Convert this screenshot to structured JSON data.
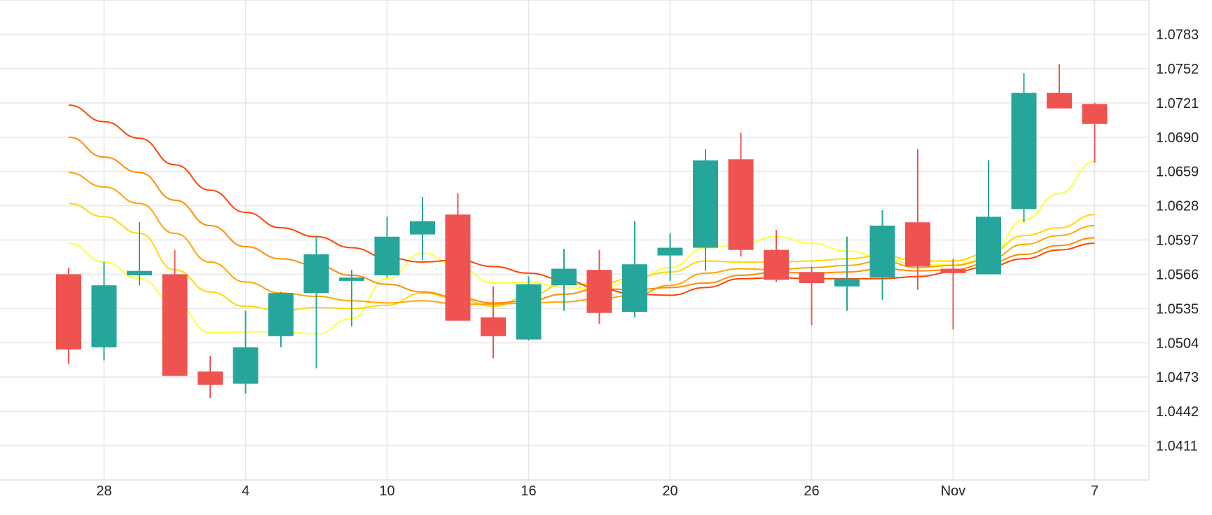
{
  "chart_data": {
    "type": "candlestick",
    "x_tick_labels": [
      "28",
      "4",
      "10",
      "16",
      "20",
      "26",
      "Nov",
      "7"
    ],
    "y_tick_labels": [
      "1.0783",
      "1.0752",
      "1.0721",
      "1.0690",
      "1.0659",
      "1.0628",
      "1.0597",
      "1.0566",
      "1.0535",
      "1.0504",
      "1.0473",
      "1.0442",
      "1.0411"
    ],
    "ylim": [
      1.038,
      1.081
    ],
    "grid": true,
    "colors": {
      "up": "#26a69a",
      "down": "#ef5350",
      "grid": "#e6e6e6"
    },
    "candles": [
      {
        "open": 1.0566,
        "high": 1.0572,
        "low": 1.0485,
        "close": 1.0498
      },
      {
        "open": 1.05,
        "high": 1.0577,
        "low": 1.0488,
        "close": 1.0556
      },
      {
        "open": 1.0565,
        "high": 1.0613,
        "low": 1.0556,
        "close": 1.0569
      },
      {
        "open": 1.0566,
        "high": 1.0588,
        "low": 1.0474,
        "close": 1.0474
      },
      {
        "open": 1.0478,
        "high": 1.0492,
        "low": 1.0454,
        "close": 1.0466
      },
      {
        "open": 1.0467,
        "high": 1.0533,
        "low": 1.0458,
        "close": 1.05
      },
      {
        "open": 1.051,
        "high": 1.055,
        "low": 1.05,
        "close": 1.0549
      },
      {
        "open": 1.0549,
        "high": 1.0601,
        "low": 1.0481,
        "close": 1.0584
      },
      {
        "open": 1.056,
        "high": 1.057,
        "low": 1.0519,
        "close": 1.0563
      },
      {
        "open": 1.0565,
        "high": 1.0618,
        "low": 1.0563,
        "close": 1.06
      },
      {
        "open": 1.0602,
        "high": 1.0636,
        "low": 1.0579,
        "close": 1.0614
      },
      {
        "open": 1.062,
        "high": 1.0639,
        "low": 1.0524,
        "close": 1.0524
      },
      {
        "open": 1.0527,
        "high": 1.0555,
        "low": 1.049,
        "close": 1.051
      },
      {
        "open": 1.0507,
        "high": 1.0564,
        "low": 1.0506,
        "close": 1.0557
      },
      {
        "open": 1.0556,
        "high": 1.0589,
        "low": 1.0533,
        "close": 1.0571
      },
      {
        "open": 1.057,
        "high": 1.0588,
        "low": 1.0521,
        "close": 1.0531
      },
      {
        "open": 1.0532,
        "high": 1.0614,
        "low": 1.0527,
        "close": 1.0575
      },
      {
        "open": 1.0583,
        "high": 1.0603,
        "low": 1.056,
        "close": 1.059
      },
      {
        "open": 1.059,
        "high": 1.0679,
        "low": 1.0569,
        "close": 1.0669
      },
      {
        "open": 1.067,
        "high": 1.0694,
        "low": 1.0582,
        "close": 1.0588
      },
      {
        "open": 1.0588,
        "high": 1.0606,
        "low": 1.0559,
        "close": 1.0561
      },
      {
        "open": 1.0568,
        "high": 1.0573,
        "low": 1.052,
        "close": 1.0558
      },
      {
        "open": 1.0555,
        "high": 1.06,
        "low": 1.0533,
        "close": 1.0562
      },
      {
        "open": 1.0563,
        "high": 1.0624,
        "low": 1.0543,
        "close": 1.061
      },
      {
        "open": 1.0613,
        "high": 1.0679,
        "low": 1.0552,
        "close": 1.0573
      },
      {
        "open": 1.0571,
        "high": 1.058,
        "low": 1.0516,
        "close": 1.0567
      },
      {
        "open": 1.0566,
        "high": 1.0669,
        "low": 1.0566,
        "close": 1.0618
      },
      {
        "open": 1.0625,
        "high": 1.0748,
        "low": 1.0613,
        "close": 1.073
      },
      {
        "open": 1.073,
        "high": 1.0756,
        "low": 1.0716,
        "close": 1.0716
      },
      {
        "open": 1.072,
        "high": 1.0721,
        "low": 1.0667,
        "close": 1.0702
      }
    ],
    "moving_averages": [
      {
        "color": "#ffff33",
        "values": [
          1.0594,
          1.0577,
          1.0562,
          1.054,
          1.0513,
          1.0514,
          1.0514,
          1.0512,
          1.0526,
          1.0562,
          1.0585,
          1.0573,
          1.0558,
          1.0559,
          1.0554,
          1.0553,
          1.0561,
          1.0572,
          1.059,
          1.0593,
          1.06,
          1.0594,
          1.0587,
          1.0581,
          1.0574,
          1.0575,
          1.0581,
          1.0615,
          1.0639,
          1.0668
        ]
      },
      {
        "color": "#ffd700",
        "values": [
          1.063,
          1.0618,
          1.0603,
          1.057,
          1.055,
          1.0537,
          1.0533,
          1.0536,
          1.0535,
          1.0538,
          1.0549,
          1.0544,
          1.0537,
          1.0546,
          1.0557,
          1.0557,
          1.0563,
          1.0568,
          1.0578,
          1.0577,
          1.0577,
          1.0578,
          1.058,
          1.0583,
          1.0578,
          1.0578,
          1.0585,
          1.0601,
          1.0608,
          1.062
        ]
      },
      {
        "color": "#ffa500",
        "values": [
          1.0658,
          1.0645,
          1.063,
          1.0603,
          1.0577,
          1.0559,
          1.0549,
          1.0546,
          1.0542,
          1.054,
          1.0542,
          1.0539,
          1.0539,
          1.054,
          1.0541,
          1.0544,
          1.0547,
          1.0556,
          1.0567,
          1.0571,
          1.057,
          1.0572,
          1.0574,
          1.0578,
          1.0572,
          1.0574,
          1.0579,
          1.0593,
          1.0601,
          1.061
        ]
      },
      {
        "color": "#ff8c00",
        "values": [
          1.069,
          1.0672,
          1.0658,
          1.0633,
          1.061,
          1.0591,
          1.058,
          1.0574,
          1.0565,
          1.0557,
          1.055,
          1.0545,
          1.054,
          1.0542,
          1.0548,
          1.0553,
          1.0552,
          1.0554,
          1.0558,
          1.0565,
          1.0568,
          1.0567,
          1.0568,
          1.0571,
          1.0569,
          1.057,
          1.0576,
          1.0584,
          1.0592,
          1.0599
        ]
      },
      {
        "color": "#ff4500",
        "values": [
          1.0719,
          1.0704,
          1.0689,
          1.0665,
          1.0642,
          1.0622,
          1.0608,
          1.06,
          1.059,
          1.0581,
          1.0577,
          1.0579,
          1.0573,
          1.0567,
          1.0561,
          1.0553,
          1.0548,
          1.0547,
          1.0554,
          1.0562,
          1.0563,
          1.0562,
          1.0562,
          1.0562,
          1.0564,
          1.0568,
          1.0573,
          1.058,
          1.0588,
          1.0594
        ]
      }
    ]
  }
}
